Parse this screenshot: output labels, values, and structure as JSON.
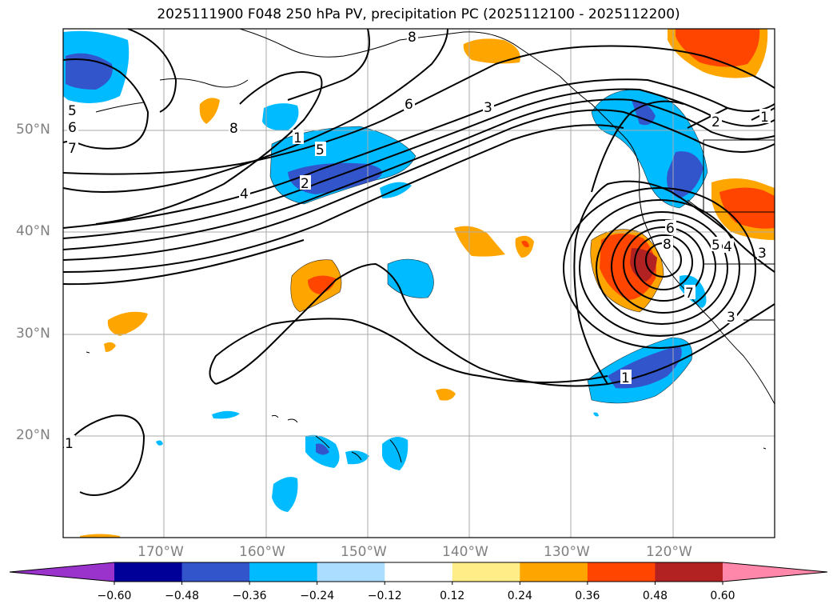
{
  "title": "2025111900 F048 250 hPa PV, precipitation PC (2025112100 - 2025112200)",
  "lat_labels": [
    "50°N",
    "40°N",
    "30°N",
    "20°N"
  ],
  "lon_labels": [
    "170°W",
    "160°W",
    "150°W",
    "140°W",
    "130°W",
    "120°W"
  ],
  "colorbar": {
    "ticks": [
      "−0.60",
      "−0.48",
      "−0.36",
      "−0.24",
      "−0.12",
      "0.12",
      "0.24",
      "0.36",
      "0.48",
      "0.60"
    ],
    "colors": [
      "#9933cc",
      "#000099",
      "#3355cc",
      "#00bbff",
      "#aaddff",
      "#ffffff",
      "#ffee88",
      "#ffa500",
      "#ff4500",
      "#b22222",
      "#ff88aa"
    ]
  },
  "contour_labels": [
    "8",
    "5",
    "6",
    "7",
    "8",
    "6",
    "3",
    "1",
    "5",
    "4",
    "2",
    "2",
    "1",
    "6",
    "8",
    "5",
    "4",
    "3",
    "7",
    "3",
    "1",
    "1"
  ],
  "colors": {
    "contour": "#000000",
    "grid": "#aaaaaa",
    "coast": "#000000"
  }
}
